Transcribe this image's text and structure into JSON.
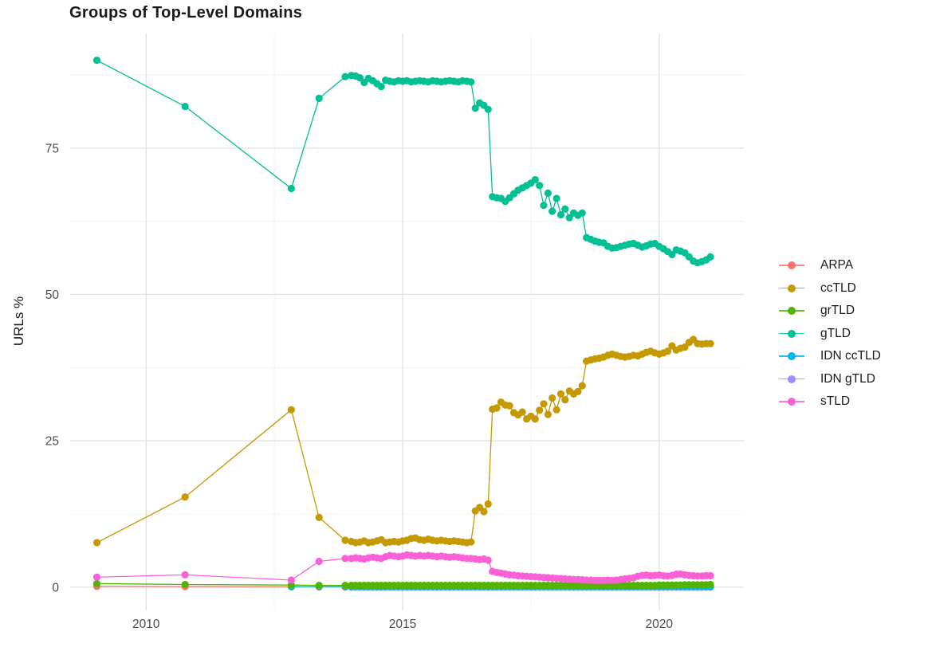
{
  "chart_data": {
    "type": "line",
    "title": "Groups of Top-Level Domains",
    "xlabel": "",
    "ylabel": "URLs %",
    "grid": "on",
    "legend_position": "right",
    "x_axis": {
      "ticks": [
        2010,
        2015,
        2020
      ],
      "minor_ticks": [
        2012.5,
        2017.5
      ],
      "range": [
        2008.5,
        2021.65
      ]
    },
    "y_axis": {
      "ticks": [
        0,
        25,
        50,
        75
      ],
      "minor_ticks": [
        12.5,
        37.5,
        62.5,
        87.5
      ],
      "range": [
        -4,
        94.6
      ]
    },
    "x_monthly": {
      "start": 2014.0,
      "step": 0.0833333,
      "count": 85
    },
    "series": [
      {
        "name": "ARPA",
        "color": "#F8766D",
        "sparse_points": [
          [
            2009.04,
            0.12
          ],
          [
            2010.76,
            0.1
          ],
          [
            2012.83,
            0.05
          ],
          [
            2013.37,
            0.04
          ],
          [
            2013.88,
            0.03
          ]
        ],
        "monthly_values": [
          0.03,
          0.03,
          0.03,
          0.03,
          0.03,
          0.03,
          0.03,
          0.03,
          0.03,
          0.03,
          0.03,
          0.03,
          0.03,
          0.03,
          0.03,
          0.03,
          0.03,
          0.03,
          0.03,
          0.03,
          0.03,
          0.03,
          0.03,
          0.03,
          0.03,
          0.03,
          0.03,
          0.03,
          0.03,
          0.03,
          0.03,
          0.03,
          0.03,
          0.03,
          0.03,
          0.03,
          0.03,
          0.03,
          0.03,
          0.03,
          0.03,
          0.03,
          0.03,
          0.03,
          0.03,
          0.03,
          0.03,
          0.03,
          0.03,
          0.03,
          0.03,
          0.03,
          0.03,
          0.03,
          0.03,
          0.03,
          0.03,
          0.03,
          0.03,
          0.03,
          0.03,
          0.03,
          0.03,
          0.03,
          0.03,
          0.03,
          0.03,
          0.03,
          0.03,
          0.03,
          0.03,
          0.03,
          0.03,
          0.03,
          0.03,
          0.03,
          0.03,
          0.03,
          0.03,
          0.03,
          0.03,
          0.03,
          0.03,
          0.03,
          0.03
        ]
      },
      {
        "name": "ccTLD",
        "color": "#C49A00",
        "sparse_points": [
          [
            2009.04,
            7.6
          ],
          [
            2010.76,
            15.4
          ],
          [
            2012.83,
            30.3
          ],
          [
            2013.37,
            11.9
          ],
          [
            2013.88,
            8.0
          ]
        ],
        "monthly_values": [
          7.8,
          7.6,
          7.7,
          7.9,
          7.6,
          7.7,
          7.9,
          8.1,
          7.6,
          7.7,
          7.8,
          7.7,
          7.9,
          8.0,
          8.3,
          8.4,
          8.1,
          8.0,
          8.2,
          8.0,
          7.9,
          8.0,
          7.9,
          7.8,
          7.9,
          7.8,
          7.7,
          7.6,
          7.7,
          13.0,
          13.6,
          12.9,
          14.2,
          30.4,
          30.6,
          31.6,
          31.1,
          31.0,
          29.8,
          29.4,
          29.9,
          28.7,
          29.2,
          28.7,
          30.2,
          31.3,
          29.5,
          32.3,
          30.3,
          33.0,
          32.0,
          33.5,
          33.0,
          33.4,
          34.4,
          38.6,
          38.8,
          39.0,
          39.1,
          39.3,
          39.6,
          39.8,
          39.6,
          39.4,
          39.3,
          39.4,
          39.6,
          39.5,
          39.8,
          40.1,
          40.3,
          40.0,
          39.8,
          40.0,
          40.3,
          41.2,
          40.5,
          40.8,
          41.0,
          41.8,
          42.3,
          41.6,
          41.5,
          41.6,
          41.6
        ]
      },
      {
        "name": "grTLD",
        "color": "#53B400",
        "sparse_points": [
          [
            2009.04,
            0.6
          ],
          [
            2010.76,
            0.45
          ],
          [
            2012.83,
            0.35
          ],
          [
            2013.37,
            0.3
          ],
          [
            2013.88,
            0.3
          ]
        ],
        "monthly_values": [
          0.3,
          0.3,
          0.3,
          0.3,
          0.3,
          0.3,
          0.3,
          0.3,
          0.3,
          0.3,
          0.3,
          0.3,
          0.3,
          0.3,
          0.3,
          0.3,
          0.3,
          0.3,
          0.3,
          0.3,
          0.3,
          0.3,
          0.3,
          0.3,
          0.3,
          0.3,
          0.3,
          0.3,
          0.3,
          0.3,
          0.3,
          0.3,
          0.3,
          0.3,
          0.3,
          0.3,
          0.3,
          0.3,
          0.3,
          0.3,
          0.3,
          0.3,
          0.3,
          0.3,
          0.3,
          0.3,
          0.3,
          0.3,
          0.3,
          0.3,
          0.3,
          0.3,
          0.3,
          0.3,
          0.3,
          0.3,
          0.3,
          0.3,
          0.3,
          0.3,
          0.3,
          0.3,
          0.3,
          0.3,
          0.3,
          0.3,
          0.3,
          0.3,
          0.3,
          0.3,
          0.3,
          0.3,
          0.35,
          0.35,
          0.35,
          0.35,
          0.35,
          0.35,
          0.4,
          0.4,
          0.4,
          0.4,
          0.4,
          0.4,
          0.45
        ]
      },
      {
        "name": "gTLD",
        "color": "#00C094",
        "sparse_points": [
          [
            2009.04,
            90.0
          ],
          [
            2010.76,
            82.1
          ],
          [
            2012.83,
            68.1
          ],
          [
            2013.37,
            83.5
          ],
          [
            2013.88,
            87.2
          ]
        ],
        "monthly_values": [
          87.4,
          87.3,
          87.0,
          86.2,
          86.9,
          86.5,
          86.0,
          85.5,
          86.6,
          86.4,
          86.3,
          86.5,
          86.4,
          86.5,
          86.3,
          86.4,
          86.5,
          86.4,
          86.3,
          86.5,
          86.4,
          86.3,
          86.4,
          86.5,
          86.4,
          86.3,
          86.5,
          86.4,
          86.3,
          81.8,
          82.7,
          82.3,
          81.6,
          66.7,
          66.5,
          66.4,
          65.9,
          66.5,
          67.2,
          67.8,
          68.2,
          68.6,
          69.0,
          69.6,
          68.6,
          65.2,
          67.3,
          64.2,
          66.4,
          63.6,
          64.6,
          63.1,
          63.9,
          63.5,
          63.9,
          59.7,
          59.4,
          59.1,
          58.9,
          58.8,
          58.2,
          57.9,
          58.0,
          58.2,
          58.4,
          58.6,
          58.7,
          58.4,
          58.1,
          58.3,
          58.6,
          58.7,
          58.2,
          57.8,
          57.3,
          56.8,
          57.6,
          57.4,
          57.1,
          56.4,
          55.7,
          55.4,
          55.6,
          55.9,
          56.4
        ]
      },
      {
        "name": "IDN ccTLD",
        "color": "#00B6EB",
        "sparse_points": [
          [
            2012.83,
            0.06
          ],
          [
            2013.37,
            0.1
          ],
          [
            2013.88,
            0.1
          ]
        ],
        "monthly_values": [
          0.1,
          0.1,
          0.1,
          0.1,
          0.1,
          0.1,
          0.1,
          0.1,
          0.1,
          0.1,
          0.1,
          0.1,
          0.1,
          0.1,
          0.1,
          0.1,
          0.1,
          0.1,
          0.1,
          0.1,
          0.1,
          0.1,
          0.1,
          0.1,
          0.1,
          0.1,
          0.1,
          0.1,
          0.1,
          0.1,
          0.1,
          0.1,
          0.1,
          0.1,
          0.1,
          0.1,
          0.1,
          0.1,
          0.1,
          0.1,
          0.1,
          0.1,
          0.1,
          0.1,
          0.1,
          0.1,
          0.1,
          0.1,
          0.1,
          0.1,
          0.1,
          0.1,
          0.1,
          0.1,
          0.1,
          0.1,
          0.1,
          0.1,
          0.1,
          0.1,
          0.1,
          0.1,
          0.1,
          0.1,
          0.1,
          0.1,
          0.1,
          0.1,
          0.1,
          0.1,
          0.1,
          0.1,
          0.1,
          0.1,
          0.1,
          0.1,
          0.1,
          0.1,
          0.1,
          0.1,
          0.1,
          0.1,
          0.1,
          0.1,
          0.1
        ]
      },
      {
        "name": "IDN gTLD",
        "color": "#A58AFF",
        "sparse_points": [],
        "monthly_values": [
          0.02,
          0.02,
          0.02,
          0.02,
          0.02,
          0.02,
          0.02,
          0.02,
          0.02,
          0.02,
          0.02,
          0.02,
          0.02,
          0.02,
          0.02,
          0.02,
          0.02,
          0.02,
          0.02,
          0.02,
          0.02,
          0.02,
          0.02,
          0.02,
          0.02,
          0.02,
          0.02,
          0.02,
          0.02,
          0.02,
          0.02,
          0.02,
          0.02,
          0.02,
          0.02,
          0.02,
          0.02,
          0.02,
          0.02,
          0.02,
          0.02,
          0.02,
          0.02,
          0.02,
          0.02,
          0.02,
          0.02,
          0.02,
          0.02,
          0.02,
          0.02,
          0.02,
          0.02,
          0.02,
          0.02,
          0.02,
          0.02,
          0.02,
          0.02,
          0.02,
          0.02,
          0.02,
          0.02,
          0.02,
          0.02,
          0.02,
          0.02,
          0.02,
          0.02,
          0.02,
          0.02,
          0.02,
          0.02,
          0.02,
          0.02,
          0.02,
          0.02,
          0.02,
          0.02,
          0.02,
          0.02,
          0.02,
          0.02,
          0.02,
          0.02
        ]
      },
      {
        "name": "sTLD",
        "color": "#FB61D7",
        "sparse_points": [
          [
            2009.04,
            1.7
          ],
          [
            2010.76,
            2.1
          ],
          [
            2012.83,
            1.2
          ],
          [
            2013.37,
            4.4
          ],
          [
            2013.88,
            4.9
          ]
        ],
        "monthly_values": [
          4.9,
          5.0,
          4.9,
          4.8,
          5.0,
          5.1,
          5.0,
          4.9,
          5.2,
          5.4,
          5.3,
          5.2,
          5.3,
          5.5,
          5.4,
          5.3,
          5.4,
          5.3,
          5.4,
          5.3,
          5.2,
          5.3,
          5.2,
          5.1,
          5.2,
          5.1,
          5.0,
          4.9,
          4.9,
          4.8,
          4.7,
          4.8,
          4.6,
          2.7,
          2.5,
          2.4,
          2.25,
          2.1,
          2.05,
          1.95,
          1.9,
          1.85,
          1.8,
          1.75,
          1.7,
          1.65,
          1.6,
          1.55,
          1.5,
          1.45,
          1.4,
          1.35,
          1.3,
          1.3,
          1.25,
          1.2,
          1.2,
          1.15,
          1.15,
          1.15,
          1.2,
          1.15,
          1.2,
          1.3,
          1.4,
          1.5,
          1.6,
          1.85,
          2.0,
          2.05,
          1.95,
          2.0,
          2.05,
          1.95,
          1.9,
          2.0,
          2.2,
          2.25,
          2.1,
          2.0,
          1.95,
          1.9,
          1.9,
          1.95,
          1.95
        ]
      }
    ],
    "legend": {
      "entries": [
        "ARPA",
        "ccTLD",
        "grTLD",
        "gTLD",
        "IDN ccTLD",
        "IDN gTLD",
        "sTLD"
      ]
    },
    "colors": {
      "major_grid": "#e3e3e3",
      "minor_grid": "#f1f1f1",
      "tick_text": "#4d4d4d",
      "title_text": "#191919",
      "background": "#ffffff"
    }
  }
}
